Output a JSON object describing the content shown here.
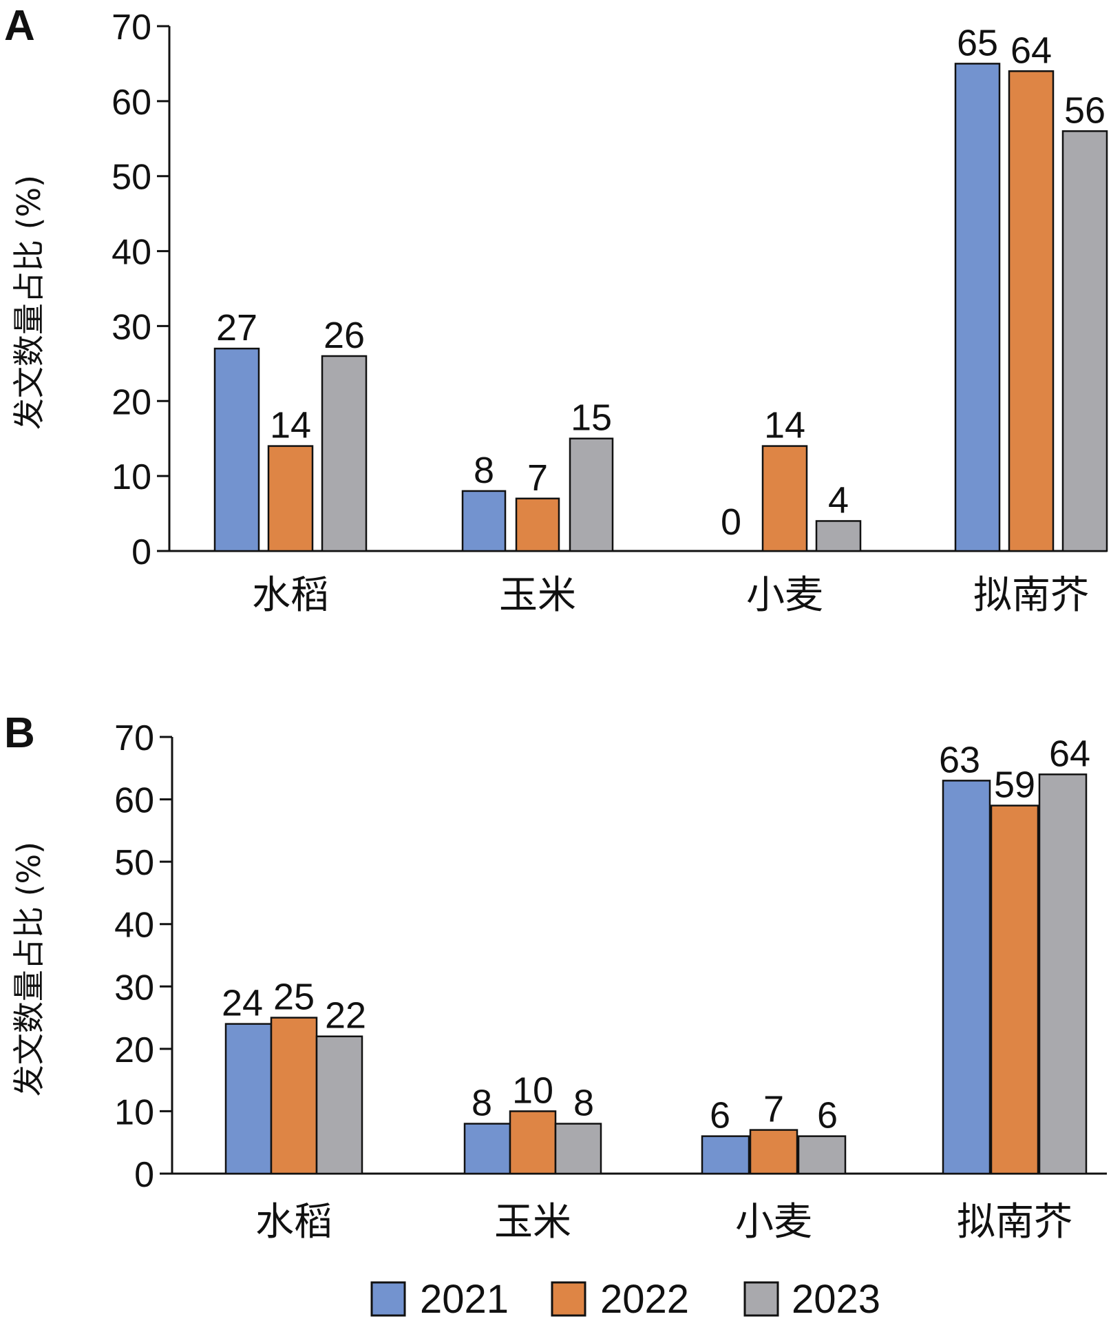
{
  "chart_data": [
    {
      "panel": "A",
      "type": "bar",
      "ylabel": "发文数量占比 (%)",
      "ylim": [
        0,
        70
      ],
      "yticks": [
        "0",
        "10",
        "20",
        "30",
        "40",
        "50",
        "60",
        "70"
      ],
      "categories": [
        "水稻",
        "玉米",
        "小麦",
        "拟南芥"
      ],
      "series": [
        {
          "name": "2021",
          "values": [
            27,
            8,
            0,
            65
          ]
        },
        {
          "name": "2022",
          "values": [
            14,
            7,
            14,
            64
          ]
        },
        {
          "name": "2023",
          "values": [
            26,
            15,
            4,
            56
          ]
        }
      ]
    },
    {
      "panel": "B",
      "type": "bar",
      "ylabel": "发文数量占比 (%)",
      "ylim": [
        0,
        70
      ],
      "yticks": [
        "0",
        "10",
        "20",
        "30",
        "40",
        "50",
        "60",
        "70"
      ],
      "categories": [
        "水稻",
        "玉米",
        "小麦",
        "拟南芥"
      ],
      "series": [
        {
          "name": "2021",
          "values": [
            24,
            8,
            6,
            63
          ]
        },
        {
          "name": "2022",
          "values": [
            25,
            10,
            7,
            59
          ]
        },
        {
          "name": "2023",
          "values": [
            22,
            8,
            6,
            64
          ]
        }
      ]
    }
  ],
  "legend": {
    "entries": [
      "2021",
      "2022",
      "2023"
    ]
  },
  "colors": {
    "2021": "#7393CF",
    "2022": "#DE8545",
    "2023": "#A9A9AD"
  }
}
